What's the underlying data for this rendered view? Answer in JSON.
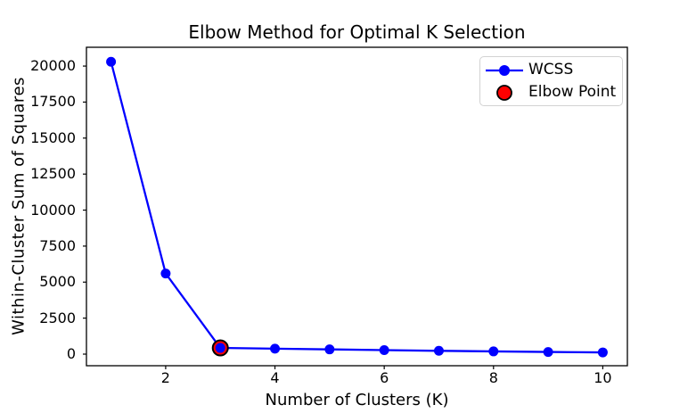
{
  "chart_data": {
    "type": "line",
    "title": "Elbow Method for Optimal K Selection",
    "xlabel": "Number of Clusters (K)",
    "ylabel": "Within-Cluster Sum of Squares",
    "x": [
      1,
      2,
      3,
      4,
      5,
      6,
      7,
      8,
      9,
      10
    ],
    "series": [
      {
        "name": "WCSS",
        "color": "#0000ff",
        "marker": "circle",
        "line_width": 2,
        "values": [
          20300,
          5600,
          430,
          380,
          330,
          280,
          230,
          190,
          150,
          120
        ]
      }
    ],
    "annotations": [
      {
        "name": "Elbow Point",
        "type": "scatter",
        "x": 3,
        "y": 430,
        "color": "#ff0000",
        "edge_color": "#000000"
      }
    ],
    "xticks": [
      2,
      4,
      6,
      8,
      10
    ],
    "yticks": [
      0,
      2500,
      5000,
      7500,
      10000,
      12500,
      15000,
      17500,
      20000
    ],
    "xlim": [
      0.55,
      10.45
    ],
    "ylim": [
      -805,
      21305
    ],
    "grid": false,
    "legend": {
      "position": "upper right",
      "entries": [
        "WCSS",
        "Elbow Point"
      ]
    },
    "axis_color": "#000000",
    "background": "#ffffff"
  }
}
